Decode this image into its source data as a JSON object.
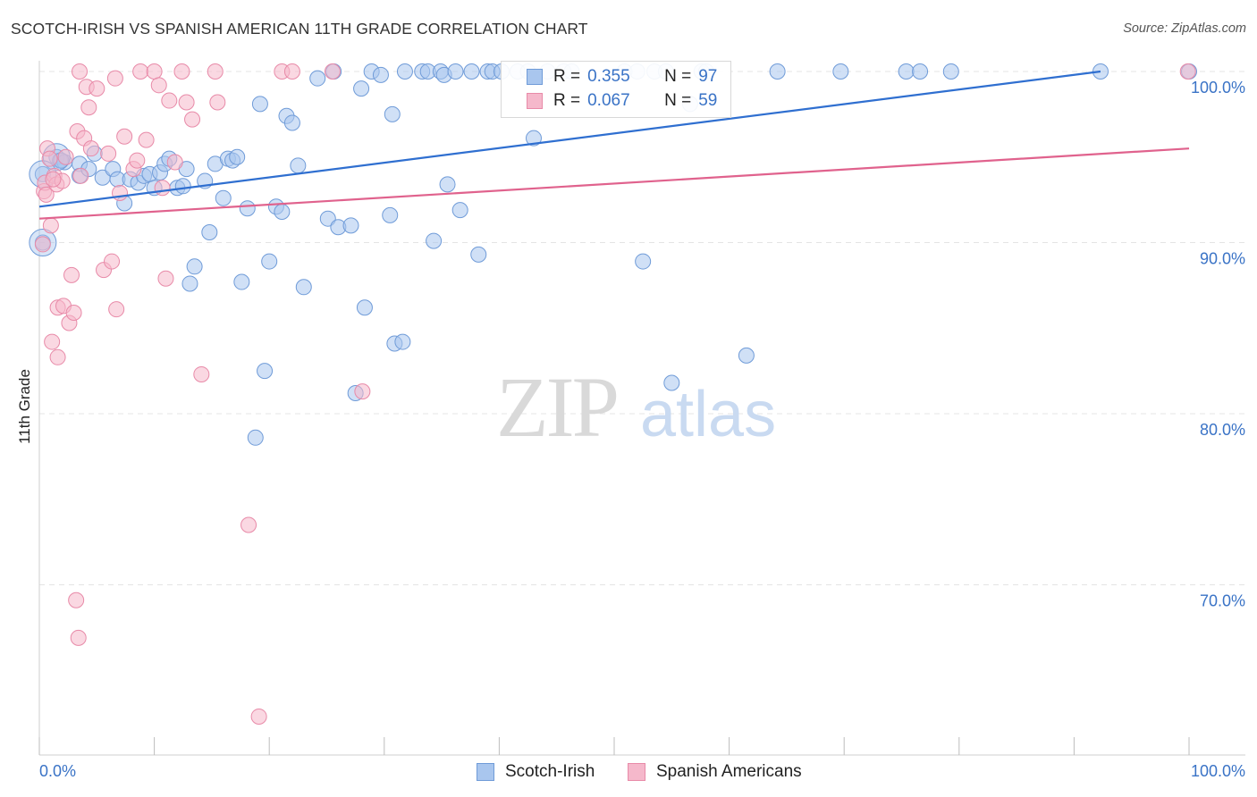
{
  "header": {
    "title": "SCOTCH-IRISH VS SPANISH AMERICAN 11TH GRADE CORRELATION CHART",
    "source": "Source: ZipAtlas.com"
  },
  "watermark": {
    "zip": "ZIP",
    "atlas": "atlas"
  },
  "legend": {
    "rows": [
      {
        "r_label": "R =",
        "r_value": "0.355",
        "n_label": "N =",
        "n_value": "97"
      },
      {
        "r_label": "R =",
        "r_value": "0.067",
        "n_label": "N =",
        "n_value": "59"
      }
    ]
  },
  "colors": {
    "blue_fill": "#a9c6ee",
    "blue_stroke": "#6f9bd8",
    "blue_line": "#2f6fd0",
    "pink_fill": "#f5b8cb",
    "pink_stroke": "#e88aa8",
    "pink_line": "#e0628d",
    "axis_text": "#3a73c6",
    "grid": "#e4e4e4"
  },
  "chart_data": {
    "type": "scatter",
    "title": "SCOTCH-IRISH VS SPANISH AMERICAN 11TH GRADE CORRELATION CHART",
    "xlabel": "",
    "ylabel": "11th Grade",
    "xlim": [
      0,
      100
    ],
    "ylim": [
      60,
      101.5
    ],
    "x_tick_labels": [
      "0.0%",
      "100.0%"
    ],
    "y_ticks": [
      {
        "value": 100,
        "label": "100.0%"
      },
      {
        "value": 90,
        "label": "90.0%"
      },
      {
        "value": 80,
        "label": "80.0%"
      },
      {
        "value": 70,
        "label": "70.0%"
      }
    ],
    "grid": true,
    "legend_position": "bottom",
    "series": [
      {
        "name": "Scotch-Irish",
        "color": "blue",
        "R": 0.355,
        "N": 97,
        "trend": {
          "x": [
            0,
            92.3
          ],
          "y": [
            92.1,
            100.0
          ]
        },
        "points": [
          [
            0.3,
            94.0
          ],
          [
            0.3,
            90.0
          ],
          [
            1.5,
            95.0
          ],
          [
            1.8,
            94.8
          ],
          [
            2.2,
            94.7
          ],
          [
            3.5,
            94.6
          ],
          [
            3.5,
            93.9
          ],
          [
            4.3,
            94.3
          ],
          [
            4.8,
            95.2
          ],
          [
            5.5,
            93.8
          ],
          [
            6.4,
            94.3
          ],
          [
            6.8,
            93.7
          ],
          [
            7.4,
            92.3
          ],
          [
            7.9,
            93.7
          ],
          [
            8.6,
            93.5
          ],
          [
            9.1,
            93.9
          ],
          [
            9.6,
            94.0
          ],
          [
            10.0,
            93.2
          ],
          [
            10.5,
            94.1
          ],
          [
            10.9,
            94.6
          ],
          [
            11.3,
            94.9
          ],
          [
            12.0,
            93.2
          ],
          [
            12.5,
            93.3
          ],
          [
            12.8,
            94.3
          ],
          [
            13.1,
            87.6
          ],
          [
            13.5,
            88.6
          ],
          [
            14.4,
            93.6
          ],
          [
            14.8,
            90.6
          ],
          [
            15.3,
            94.6
          ],
          [
            16.0,
            92.6
          ],
          [
            16.4,
            94.9
          ],
          [
            16.8,
            94.8
          ],
          [
            17.2,
            95.0
          ],
          [
            17.6,
            87.7
          ],
          [
            18.1,
            92.0
          ],
          [
            18.8,
            78.6
          ],
          [
            19.2,
            98.1
          ],
          [
            19.6,
            82.5
          ],
          [
            20.0,
            88.9
          ],
          [
            20.6,
            92.1
          ],
          [
            21.1,
            91.8
          ],
          [
            21.5,
            97.4
          ],
          [
            22.0,
            97.0
          ],
          [
            22.5,
            94.5
          ],
          [
            23.0,
            87.4
          ],
          [
            24.2,
            99.6
          ],
          [
            25.1,
            91.4
          ],
          [
            25.6,
            100.0
          ],
          [
            26.0,
            90.9
          ],
          [
            27.1,
            91.0
          ],
          [
            27.5,
            81.2
          ],
          [
            28.0,
            99.0
          ],
          [
            28.3,
            86.2
          ],
          [
            28.9,
            100.0
          ],
          [
            29.7,
            99.8
          ],
          [
            30.5,
            91.6
          ],
          [
            30.7,
            97.5
          ],
          [
            30.9,
            84.1
          ],
          [
            31.6,
            84.2
          ],
          [
            31.8,
            100.0
          ],
          [
            33.3,
            100.0
          ],
          [
            33.8,
            100.0
          ],
          [
            34.3,
            90.1
          ],
          [
            34.9,
            100.0
          ],
          [
            35.2,
            99.8
          ],
          [
            35.5,
            93.4
          ],
          [
            36.2,
            100.0
          ],
          [
            36.6,
            91.9
          ],
          [
            37.6,
            100.0
          ],
          [
            38.2,
            89.3
          ],
          [
            39.0,
            100.0
          ],
          [
            39.4,
            100.0
          ],
          [
            40.2,
            100.0
          ],
          [
            41.6,
            100.0
          ],
          [
            42.5,
            100.0
          ],
          [
            43.0,
            96.1
          ],
          [
            44.2,
            100.0
          ],
          [
            45.6,
            100.0
          ],
          [
            46.3,
            100.0
          ],
          [
            50.9,
            100.0
          ],
          [
            52.0,
            100.0
          ],
          [
            52.5,
            88.9
          ],
          [
            53.5,
            100.0
          ],
          [
            54.5,
            100.0
          ],
          [
            55.0,
            81.8
          ],
          [
            56.6,
            98.1
          ],
          [
            57.6,
            100.0
          ],
          [
            58.0,
            100.0
          ],
          [
            61.5,
            83.4
          ],
          [
            64.2,
            100.0
          ],
          [
            69.7,
            100.0
          ],
          [
            75.4,
            100.0
          ],
          [
            76.6,
            100.0
          ],
          [
            79.3,
            100.0
          ],
          [
            92.3,
            100.0
          ],
          [
            100.0,
            100.0
          ],
          [
            1.9,
            94.8
          ]
        ],
        "large_points": [
          [
            0.3,
            90.0
          ],
          [
            1.5,
            95.0
          ],
          [
            0.3,
            94.0
          ]
        ]
      },
      {
        "name": "Spanish Americans",
        "color": "pink",
        "R": 0.067,
        "N": 59,
        "trend": {
          "x": [
            0,
            100
          ],
          "y": [
            91.4,
            95.5
          ]
        },
        "points": [
          [
            0.3,
            89.9
          ],
          [
            0.4,
            93.0
          ],
          [
            0.5,
            93.5
          ],
          [
            0.6,
            92.8
          ],
          [
            0.7,
            95.5
          ],
          [
            0.9,
            94.9
          ],
          [
            1.0,
            91.0
          ],
          [
            1.1,
            84.2
          ],
          [
            1.3,
            93.9
          ],
          [
            1.5,
            93.4
          ],
          [
            1.6,
            86.2
          ],
          [
            1.6,
            83.3
          ],
          [
            2.0,
            93.6
          ],
          [
            2.1,
            86.3
          ],
          [
            2.3,
            95.0
          ],
          [
            2.6,
            85.3
          ],
          [
            2.8,
            88.1
          ],
          [
            3.0,
            85.9
          ],
          [
            3.2,
            69.1
          ],
          [
            3.3,
            96.5
          ],
          [
            3.4,
            66.9
          ],
          [
            3.5,
            100.0
          ],
          [
            3.9,
            96.1
          ],
          [
            4.1,
            99.1
          ],
          [
            4.3,
            97.9
          ],
          [
            4.5,
            95.5
          ],
          [
            5.0,
            99.0
          ],
          [
            5.6,
            88.4
          ],
          [
            6.0,
            95.2
          ],
          [
            6.3,
            88.9
          ],
          [
            6.6,
            99.6
          ],
          [
            6.7,
            86.1
          ],
          [
            7.0,
            92.9
          ],
          [
            7.4,
            96.2
          ],
          [
            8.2,
            94.3
          ],
          [
            8.5,
            94.8
          ],
          [
            8.8,
            100.0
          ],
          [
            9.3,
            96.0
          ],
          [
            10.0,
            100.0
          ],
          [
            10.4,
            99.2
          ],
          [
            10.7,
            93.2
          ],
          [
            11.0,
            87.9
          ],
          [
            11.3,
            98.3
          ],
          [
            11.8,
            94.7
          ],
          [
            12.4,
            100.0
          ],
          [
            12.8,
            98.2
          ],
          [
            13.3,
            97.2
          ],
          [
            14.1,
            82.3
          ],
          [
            15.3,
            100.0
          ],
          [
            15.5,
            98.2
          ],
          [
            18.2,
            73.5
          ],
          [
            19.1,
            62.3
          ],
          [
            21.1,
            100.0
          ],
          [
            22.0,
            100.0
          ],
          [
            25.5,
            100.0
          ],
          [
            28.1,
            81.3
          ],
          [
            99.9,
            100.0
          ],
          [
            1.2,
            93.7
          ],
          [
            3.6,
            93.9
          ]
        ],
        "large_points": []
      }
    ]
  },
  "bottom_legend": {
    "items": [
      {
        "label": "Scotch-Irish"
      },
      {
        "label": "Spanish Americans"
      }
    ]
  }
}
